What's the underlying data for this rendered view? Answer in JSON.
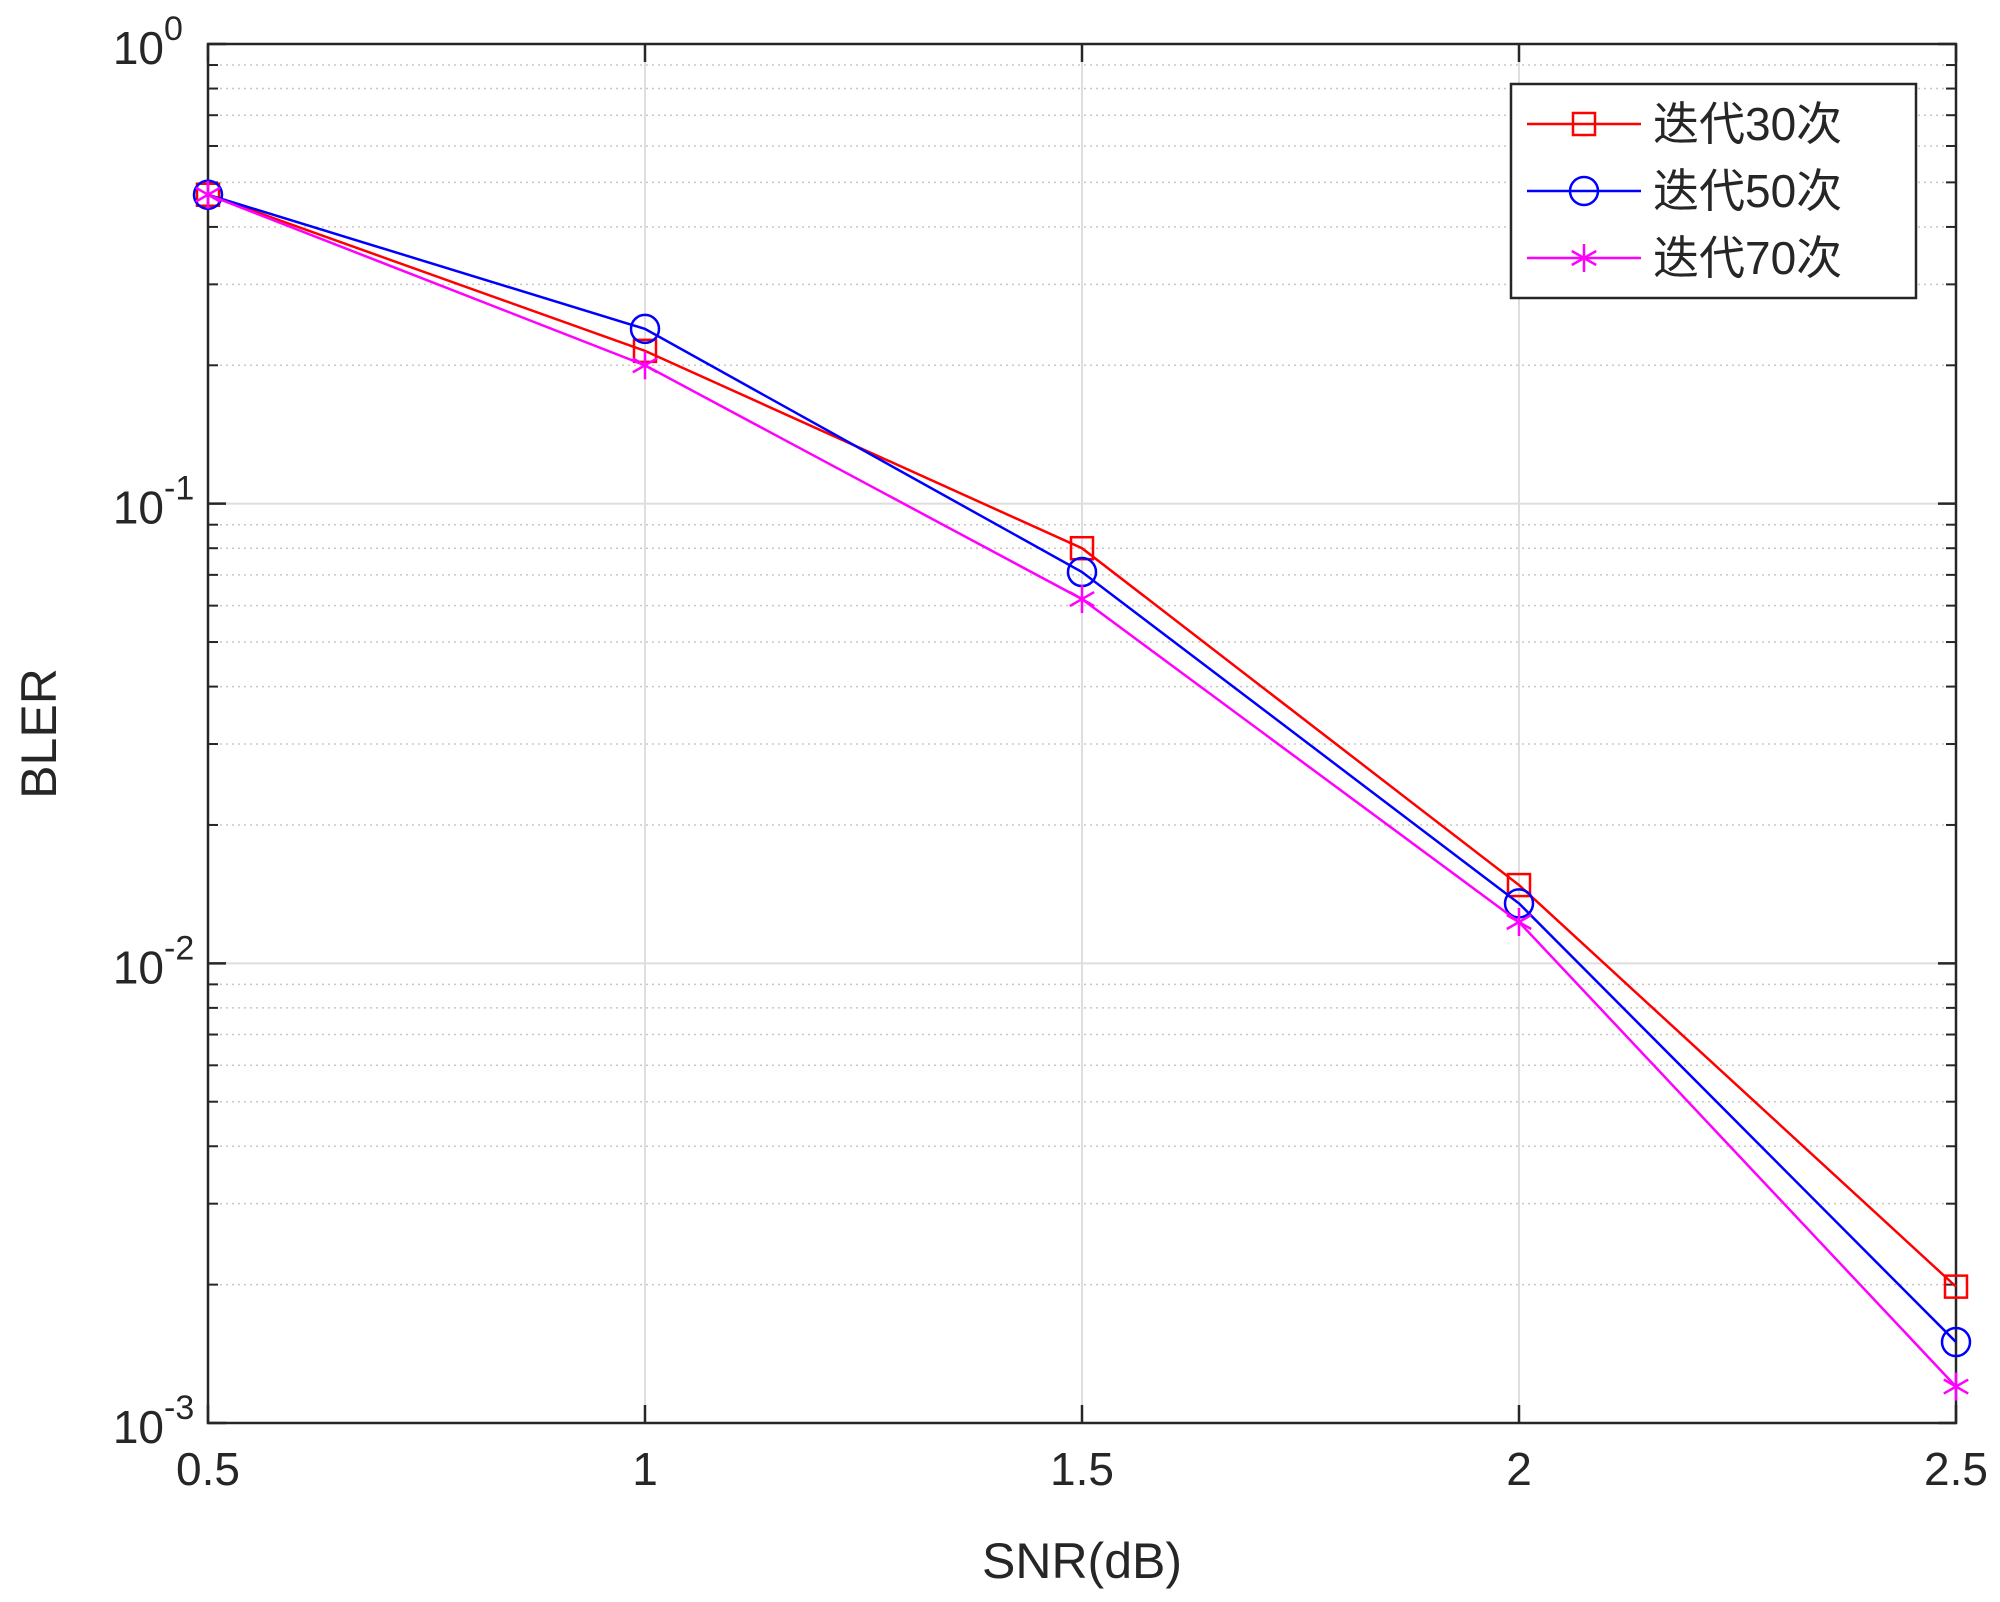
{
  "chart_data": {
    "type": "line",
    "title": "",
    "xlabel": "SNR(dB)",
    "ylabel": "BLER",
    "yscale": "log",
    "xlim": [
      0.5,
      2.5
    ],
    "ylim": [
      0.001,
      1
    ],
    "grid": true,
    "legend_position": "top-right",
    "x": [
      0.5,
      1,
      1.5,
      2,
      2.5
    ],
    "x_tick_labels": [
      "0.5",
      "1",
      "1.5",
      "2",
      "2.5"
    ],
    "y_ticks": [
      {
        "base": "10",
        "exp": "0",
        "value": 1
      },
      {
        "base": "10",
        "exp": "-1",
        "value": 0.1
      },
      {
        "base": "10",
        "exp": "-2",
        "value": 0.01
      },
      {
        "base": "10",
        "exp": "-3",
        "value": 0.001
      }
    ],
    "series": [
      {
        "name": "迭代30次",
        "color": "#ff0000",
        "marker": "square",
        "values": [
          0.47,
          0.215,
          0.08,
          0.0148,
          0.00198
        ]
      },
      {
        "name": "迭代50次",
        "color": "#0000ff",
        "marker": "circle",
        "values": [
          0.47,
          0.24,
          0.071,
          0.0135,
          0.0015
        ]
      },
      {
        "name": "迭代70次",
        "color": "#ff00ff",
        "marker": "asterisk",
        "values": [
          0.47,
          0.2,
          0.062,
          0.0123,
          0.0012
        ]
      }
    ]
  }
}
